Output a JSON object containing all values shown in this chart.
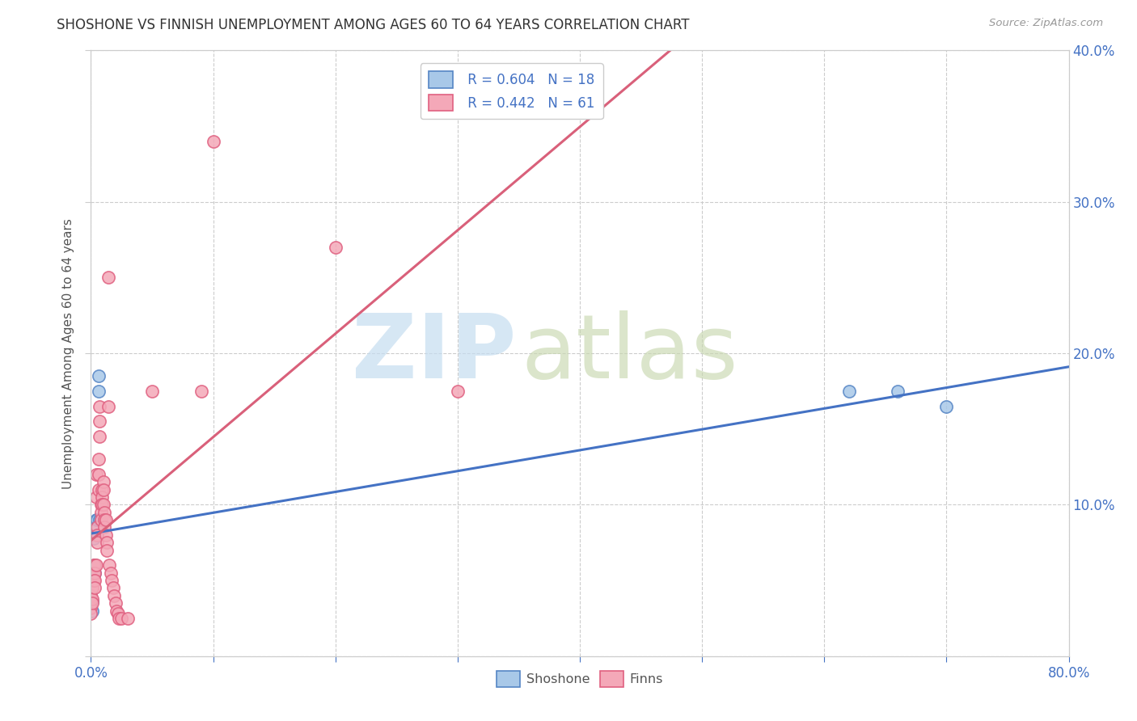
{
  "title": "SHOSHONE VS FINNISH UNEMPLOYMENT AMONG AGES 60 TO 64 YEARS CORRELATION CHART",
  "source": "Source: ZipAtlas.com",
  "ylabel": "Unemployment Among Ages 60 to 64 years",
  "xlim": [
    0.0,
    0.8
  ],
  "ylim": [
    0.0,
    0.4
  ],
  "xtick_positions": [
    0.0,
    0.1,
    0.2,
    0.3,
    0.4,
    0.5,
    0.6,
    0.7,
    0.8
  ],
  "ytick_positions": [
    0.0,
    0.1,
    0.2,
    0.3,
    0.4
  ],
  "shoshone_color": "#a8c8e8",
  "finns_color": "#f4a8b8",
  "shoshone_edge_color": "#5585c5",
  "finns_edge_color": "#e06080",
  "shoshone_line_color": "#4472c4",
  "finns_line_color": "#d9607a",
  "tick_color": "#4472c4",
  "title_color": "#333333",
  "source_color": "#999999",
  "grid_color": "#cccccc",
  "shoshone_R": 0.604,
  "shoshone_N": 18,
  "finns_R": 0.442,
  "finns_N": 61,
  "shoshone_points": [
    [
      0.0,
      0.04
    ],
    [
      0.0,
      0.038
    ],
    [
      0.001,
      0.036
    ],
    [
      0.001,
      0.03
    ],
    [
      0.002,
      0.078
    ],
    [
      0.003,
      0.06
    ],
    [
      0.003,
      0.055
    ],
    [
      0.004,
      0.09
    ],
    [
      0.004,
      0.085
    ],
    [
      0.005,
      0.09
    ],
    [
      0.005,
      0.08
    ],
    [
      0.006,
      0.185
    ],
    [
      0.006,
      0.175
    ],
    [
      0.007,
      0.09
    ],
    [
      0.008,
      0.09
    ],
    [
      0.62,
      0.175
    ],
    [
      0.66,
      0.175
    ],
    [
      0.7,
      0.165
    ]
  ],
  "finns_points": [
    [
      0.0,
      0.04
    ],
    [
      0.0,
      0.038
    ],
    [
      0.0,
      0.032
    ],
    [
      0.0,
      0.028
    ],
    [
      0.001,
      0.05
    ],
    [
      0.001,
      0.045
    ],
    [
      0.001,
      0.038
    ],
    [
      0.001,
      0.035
    ],
    [
      0.002,
      0.06
    ],
    [
      0.002,
      0.055
    ],
    [
      0.002,
      0.05
    ],
    [
      0.003,
      0.06
    ],
    [
      0.003,
      0.055
    ],
    [
      0.003,
      0.05
    ],
    [
      0.003,
      0.045
    ],
    [
      0.004,
      0.12
    ],
    [
      0.004,
      0.105
    ],
    [
      0.004,
      0.06
    ],
    [
      0.005,
      0.085
    ],
    [
      0.005,
      0.08
    ],
    [
      0.005,
      0.075
    ],
    [
      0.006,
      0.13
    ],
    [
      0.006,
      0.12
    ],
    [
      0.006,
      0.11
    ],
    [
      0.007,
      0.165
    ],
    [
      0.007,
      0.155
    ],
    [
      0.007,
      0.145
    ],
    [
      0.008,
      0.1
    ],
    [
      0.008,
      0.095
    ],
    [
      0.008,
      0.09
    ],
    [
      0.009,
      0.11
    ],
    [
      0.009,
      0.105
    ],
    [
      0.009,
      0.1
    ],
    [
      0.01,
      0.115
    ],
    [
      0.01,
      0.11
    ],
    [
      0.01,
      0.1
    ],
    [
      0.011,
      0.095
    ],
    [
      0.011,
      0.09
    ],
    [
      0.011,
      0.085
    ],
    [
      0.012,
      0.09
    ],
    [
      0.012,
      0.08
    ],
    [
      0.013,
      0.075
    ],
    [
      0.013,
      0.07
    ],
    [
      0.014,
      0.165
    ],
    [
      0.015,
      0.06
    ],
    [
      0.016,
      0.055
    ],
    [
      0.017,
      0.05
    ],
    [
      0.018,
      0.045
    ],
    [
      0.019,
      0.04
    ],
    [
      0.02,
      0.035
    ],
    [
      0.021,
      0.03
    ],
    [
      0.022,
      0.028
    ],
    [
      0.023,
      0.025
    ],
    [
      0.025,
      0.025
    ],
    [
      0.03,
      0.025
    ],
    [
      0.05,
      0.175
    ],
    [
      0.09,
      0.175
    ],
    [
      0.1,
      0.34
    ],
    [
      0.2,
      0.27
    ],
    [
      0.014,
      0.25
    ],
    [
      0.3,
      0.175
    ]
  ]
}
